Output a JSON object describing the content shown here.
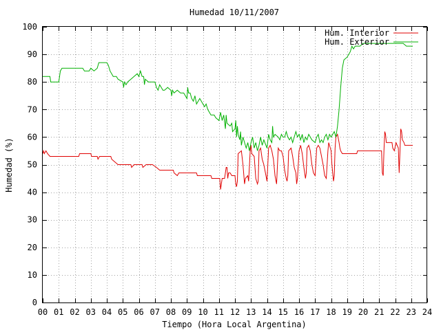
{
  "chart_data": {
    "type": "line",
    "title": "Humedad 10/11/2007",
    "xlabel": "Tiempo (Hora Local Argentina)",
    "ylabel": "Humedad (%)",
    "xlim": [
      0,
      24
    ],
    "ylim": [
      0,
      100
    ],
    "x_ticks": [
      "00",
      "01",
      "02",
      "03",
      "04",
      "05",
      "06",
      "07",
      "08",
      "09",
      "10",
      "11",
      "12",
      "13",
      "14",
      "15",
      "16",
      "17",
      "18",
      "19",
      "20",
      "21",
      "22",
      "23",
      "24"
    ],
    "y_ticks": [
      0,
      10,
      20,
      30,
      40,
      50,
      60,
      70,
      80,
      90,
      100
    ],
    "grid": true,
    "legend_position": "top-right",
    "series": [
      {
        "name": "Hum. Interior",
        "color": "#e00000",
        "points": [
          [
            0.0,
            54
          ],
          [
            0.05,
            55
          ],
          [
            0.1,
            54
          ],
          [
            0.2,
            55
          ],
          [
            0.3,
            54
          ],
          [
            0.45,
            53
          ],
          [
            1.5,
            53
          ],
          [
            2.25,
            53
          ],
          [
            2.3,
            54
          ],
          [
            3.0,
            54
          ],
          [
            3.05,
            53
          ],
          [
            3.4,
            53
          ],
          [
            3.45,
            52
          ],
          [
            3.55,
            53
          ],
          [
            4.25,
            53
          ],
          [
            4.3,
            52
          ],
          [
            4.5,
            51
          ],
          [
            4.7,
            50
          ],
          [
            5.5,
            50
          ],
          [
            5.55,
            49
          ],
          [
            5.7,
            50
          ],
          [
            6.2,
            50
          ],
          [
            6.25,
            49
          ],
          [
            6.45,
            50
          ],
          [
            6.85,
            50
          ],
          [
            7.1,
            49
          ],
          [
            7.3,
            48
          ],
          [
            8.15,
            48
          ],
          [
            8.2,
            47
          ],
          [
            8.4,
            46
          ],
          [
            8.5,
            47
          ],
          [
            9.6,
            47
          ],
          [
            9.65,
            46
          ],
          [
            10.5,
            46
          ],
          [
            10.55,
            45
          ],
          [
            11.05,
            45
          ],
          [
            11.1,
            41
          ],
          [
            11.2,
            45
          ],
          [
            11.35,
            45
          ],
          [
            11.4,
            47
          ],
          [
            11.45,
            49
          ],
          [
            11.5,
            49
          ],
          [
            11.55,
            45
          ],
          [
            11.6,
            47
          ],
          [
            11.7,
            47
          ],
          [
            11.8,
            46
          ],
          [
            11.9,
            46
          ],
          [
            12.0,
            46
          ],
          [
            12.05,
            43
          ],
          [
            12.1,
            42
          ],
          [
            12.15,
            44
          ],
          [
            12.2,
            54
          ],
          [
            12.4,
            55
          ],
          [
            12.5,
            50
          ],
          [
            12.6,
            43
          ],
          [
            12.65,
            45
          ],
          [
            12.8,
            46
          ],
          [
            12.85,
            44
          ],
          [
            12.95,
            55
          ],
          [
            13.0,
            57
          ],
          [
            13.05,
            54
          ],
          [
            13.2,
            53
          ],
          [
            13.3,
            45
          ],
          [
            13.4,
            43
          ],
          [
            13.45,
            44
          ],
          [
            13.5,
            55
          ],
          [
            13.6,
            56
          ],
          [
            13.7,
            52
          ],
          [
            13.8,
            50
          ],
          [
            13.9,
            47
          ],
          [
            14.0,
            44
          ],
          [
            14.1,
            56
          ],
          [
            14.2,
            57
          ],
          [
            14.3,
            55
          ],
          [
            14.4,
            52
          ],
          [
            14.5,
            46
          ],
          [
            14.6,
            43
          ],
          [
            14.7,
            56
          ],
          [
            14.8,
            55
          ],
          [
            14.9,
            55
          ],
          [
            15.0,
            53
          ],
          [
            15.1,
            48
          ],
          [
            15.2,
            45
          ],
          [
            15.25,
            44
          ],
          [
            15.3,
            46
          ],
          [
            15.35,
            55
          ],
          [
            15.5,
            56
          ],
          [
            15.6,
            53
          ],
          [
            15.7,
            49
          ],
          [
            15.8,
            47
          ],
          [
            15.85,
            43
          ],
          [
            15.9,
            45
          ],
          [
            16.0,
            55
          ],
          [
            16.1,
            57
          ],
          [
            16.2,
            54
          ],
          [
            16.3,
            49
          ],
          [
            16.4,
            45
          ],
          [
            16.45,
            47
          ],
          [
            16.5,
            56
          ],
          [
            16.6,
            57
          ],
          [
            16.7,
            55
          ],
          [
            16.8,
            50
          ],
          [
            16.9,
            47
          ],
          [
            17.0,
            46
          ],
          [
            17.1,
            56
          ],
          [
            17.2,
            57
          ],
          [
            17.3,
            56
          ],
          [
            17.4,
            53
          ],
          [
            17.5,
            50
          ],
          [
            17.6,
            46
          ],
          [
            17.7,
            45
          ],
          [
            17.8,
            55
          ],
          [
            17.85,
            58
          ],
          [
            17.9,
            57
          ],
          [
            18.0,
            55
          ],
          [
            18.05,
            50
          ],
          [
            18.15,
            44
          ],
          [
            18.2,
            46
          ],
          [
            18.25,
            56
          ],
          [
            18.3,
            60
          ],
          [
            18.4,
            61
          ],
          [
            18.5,
            58
          ],
          [
            18.55,
            56
          ],
          [
            18.6,
            55
          ],
          [
            18.7,
            54
          ],
          [
            19.6,
            54
          ],
          [
            19.65,
            55
          ],
          [
            21.15,
            55
          ],
          [
            21.2,
            47
          ],
          [
            21.25,
            46
          ],
          [
            21.3,
            55
          ],
          [
            21.35,
            62
          ],
          [
            21.4,
            61
          ],
          [
            21.45,
            58
          ],
          [
            21.8,
            58
          ],
          [
            21.85,
            56
          ],
          [
            21.95,
            55
          ],
          [
            22.05,
            58
          ],
          [
            22.2,
            56
          ],
          [
            22.25,
            47
          ],
          [
            22.3,
            55
          ],
          [
            22.35,
            63
          ],
          [
            22.4,
            62
          ],
          [
            22.45,
            59
          ],
          [
            22.55,
            58
          ],
          [
            22.6,
            57
          ],
          [
            23.1,
            57
          ]
        ]
      },
      {
        "name": "Hum. Exterior",
        "color": "#00b000",
        "points": [
          [
            0.0,
            82
          ],
          [
            0.45,
            82
          ],
          [
            0.5,
            80
          ],
          [
            1.0,
            80
          ],
          [
            1.1,
            84
          ],
          [
            1.2,
            85
          ],
          [
            2.5,
            85
          ],
          [
            2.6,
            84
          ],
          [
            2.9,
            84
          ],
          [
            3.0,
            85
          ],
          [
            3.2,
            84
          ],
          [
            3.4,
            85
          ],
          [
            3.5,
            87
          ],
          [
            4.0,
            87
          ],
          [
            4.1,
            86
          ],
          [
            4.2,
            84
          ],
          [
            4.4,
            82
          ],
          [
            4.6,
            82
          ],
          [
            4.7,
            81
          ],
          [
            5.0,
            80
          ],
          [
            5.05,
            78
          ],
          [
            5.1,
            80
          ],
          [
            5.2,
            79
          ],
          [
            5.3,
            80
          ],
          [
            5.5,
            81
          ],
          [
            5.7,
            82
          ],
          [
            5.9,
            83
          ],
          [
            6.0,
            82
          ],
          [
            6.1,
            84
          ],
          [
            6.2,
            82
          ],
          [
            6.3,
            82
          ],
          [
            6.35,
            79
          ],
          [
            6.4,
            81
          ],
          [
            6.6,
            80
          ],
          [
            6.8,
            80
          ],
          [
            7.0,
            80
          ],
          [
            7.1,
            78
          ],
          [
            7.2,
            77
          ],
          [
            7.3,
            79
          ],
          [
            7.4,
            78
          ],
          [
            7.5,
            77
          ],
          [
            7.6,
            77
          ],
          [
            7.8,
            78
          ],
          [
            8.0,
            77
          ],
          [
            8.05,
            75
          ],
          [
            8.1,
            77
          ],
          [
            8.2,
            76
          ],
          [
            8.4,
            77
          ],
          [
            8.6,
            76
          ],
          [
            8.8,
            76
          ],
          [
            9.0,
            74
          ],
          [
            9.05,
            78
          ],
          [
            9.1,
            76
          ],
          [
            9.2,
            76
          ],
          [
            9.3,
            74
          ],
          [
            9.4,
            73
          ],
          [
            9.5,
            75
          ],
          [
            9.6,
            72
          ],
          [
            9.8,
            74
          ],
          [
            10.0,
            72
          ],
          [
            10.1,
            71
          ],
          [
            10.2,
            72
          ],
          [
            10.3,
            70
          ],
          [
            10.4,
            69
          ],
          [
            10.5,
            68
          ],
          [
            10.7,
            68
          ],
          [
            10.8,
            67
          ],
          [
            11.0,
            66
          ],
          [
            11.1,
            69
          ],
          [
            11.2,
            66
          ],
          [
            11.3,
            68
          ],
          [
            11.4,
            63
          ],
          [
            11.45,
            68
          ],
          [
            11.5,
            65
          ],
          [
            11.7,
            64
          ],
          [
            11.8,
            65
          ],
          [
            11.85,
            62
          ],
          [
            12.0,
            63
          ],
          [
            12.05,
            66
          ],
          [
            12.1,
            60
          ],
          [
            12.15,
            64
          ],
          [
            12.2,
            61
          ],
          [
            12.3,
            59
          ],
          [
            12.35,
            62
          ],
          [
            12.4,
            57
          ],
          [
            12.5,
            60
          ],
          [
            12.6,
            58
          ],
          [
            12.7,
            56
          ],
          [
            12.8,
            58
          ],
          [
            12.9,
            55
          ],
          [
            13.0,
            58
          ],
          [
            13.1,
            60
          ],
          [
            13.2,
            56
          ],
          [
            13.3,
            58
          ],
          [
            13.4,
            55
          ],
          [
            13.5,
            57
          ],
          [
            13.6,
            60
          ],
          [
            13.7,
            57
          ],
          [
            13.8,
            59
          ],
          [
            14.0,
            56
          ],
          [
            14.1,
            61
          ],
          [
            14.2,
            59
          ],
          [
            14.3,
            58
          ],
          [
            14.35,
            64
          ],
          [
            14.4,
            60
          ],
          [
            14.5,
            61
          ],
          [
            14.7,
            60
          ],
          [
            14.8,
            59
          ],
          [
            14.9,
            61
          ],
          [
            15.0,
            60
          ],
          [
            15.1,
            60
          ],
          [
            15.2,
            62
          ],
          [
            15.3,
            60
          ],
          [
            15.4,
            59
          ],
          [
            15.5,
            60
          ],
          [
            15.6,
            58
          ],
          [
            15.7,
            60
          ],
          [
            15.8,
            62
          ],
          [
            15.9,
            60
          ],
          [
            16.0,
            61
          ],
          [
            16.1,
            59
          ],
          [
            16.2,
            61
          ],
          [
            16.3,
            58
          ],
          [
            16.4,
            60
          ],
          [
            16.5,
            59
          ],
          [
            16.6,
            61
          ],
          [
            16.8,
            59
          ],
          [
            17.0,
            58
          ],
          [
            17.1,
            60
          ],
          [
            17.2,
            61
          ],
          [
            17.3,
            58
          ],
          [
            17.4,
            59
          ],
          [
            17.5,
            58
          ],
          [
            17.6,
            60
          ],
          [
            17.7,
            61
          ],
          [
            17.8,
            59
          ],
          [
            17.9,
            61
          ],
          [
            18.0,
            60
          ],
          [
            18.1,
            61
          ],
          [
            18.2,
            62
          ],
          [
            18.3,
            60
          ],
          [
            18.4,
            64
          ],
          [
            18.5,
            70
          ],
          [
            18.6,
            78
          ],
          [
            18.7,
            85
          ],
          [
            18.8,
            88
          ],
          [
            19.0,
            89
          ],
          [
            19.2,
            91
          ],
          [
            19.3,
            93
          ],
          [
            19.4,
            92
          ],
          [
            19.5,
            93
          ],
          [
            19.8,
            93
          ],
          [
            20.0,
            94
          ],
          [
            22.5,
            94
          ],
          [
            22.7,
            93
          ],
          [
            23.1,
            93
          ]
        ]
      }
    ]
  }
}
